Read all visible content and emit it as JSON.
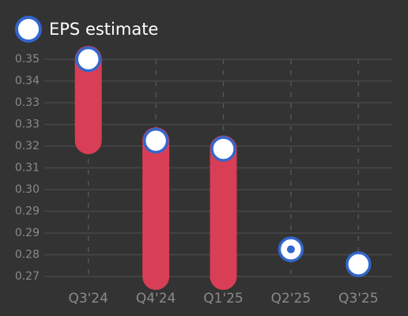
{
  "chart_data": {
    "type": "eps",
    "categories": [
      "Q3'24",
      "Q4'24",
      "Q1'25",
      "Q2'25",
      "Q3'25"
    ],
    "series": [
      {
        "name": "EPS estimate",
        "color": "#ffffff",
        "values": [
          0.35,
          0.32,
          0.317,
          0.28,
          0.2745
        ]
      },
      {
        "color": "#d83e55",
        "values": [
          0.32,
          0.27,
          0.27,
          0.28,
          null
        ]
      }
    ],
    "ylim": [
      0.27,
      0.35
    ],
    "yticks": [
      0.35,
      {
        "value": 0.342,
        "label": "0.34"
      },
      {
        "value": 0.334,
        "label": "0.33"
      },
      {
        "value": 0.326,
        "label": "0.33"
      },
      {
        "value": 0.318,
        "label": "0.32"
      },
      {
        "value": 0.31,
        "label": "0.31"
      },
      {
        "value": 0.302,
        "label": "0.30"
      },
      {
        "value": 0.294,
        "label": "0.29"
      },
      {
        "value": 0.286,
        "label": "0.29"
      },
      {
        "value": 0.278,
        "label": "0.28"
      },
      0.27
    ],
    "grid": true,
    "legend": "top-left"
  }
}
